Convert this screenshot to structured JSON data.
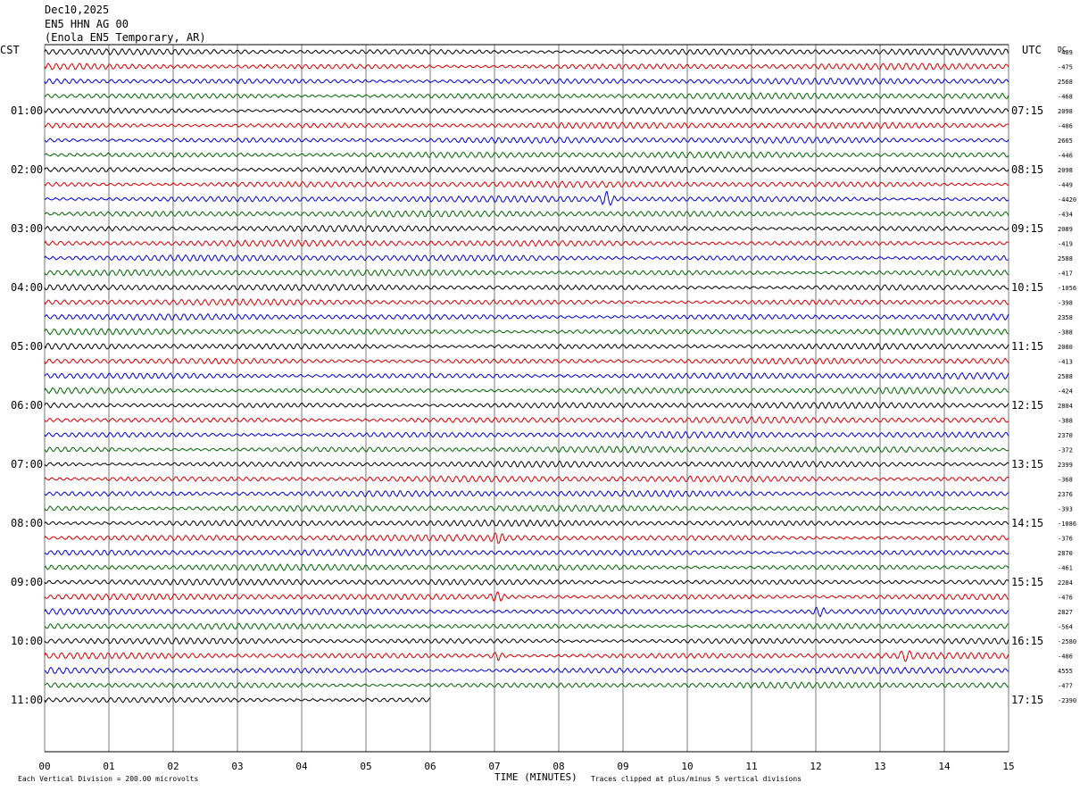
{
  "header": {
    "date": "Dec10,2025",
    "station": "EN5 HHN AG 00",
    "location": "(Enola EN5 Temporary, AR)"
  },
  "left_label": "CST",
  "right_label": "UTC",
  "dc_label": "DC",
  "footer": {
    "division_note": "Each Vertical Division =  200.00 microvolts",
    "xlabel": "TIME (MINUTES)",
    "clip_note": "Traces clipped at plus/minus 5 vertical divisions"
  },
  "colors": {
    "trace_cycle": [
      "#000000",
      "#d00000",
      "#0000c8",
      "#006400"
    ],
    "grid": "#000000",
    "text": "#000000"
  },
  "chart_data": {
    "type": "line",
    "title": "",
    "xlabel": "TIME (MINUTES)",
    "ylabel": "",
    "x_range": [
      0,
      15
    ],
    "x_ticks": [
      "00",
      "01",
      "02",
      "03",
      "04",
      "05",
      "06",
      "07",
      "08",
      "09",
      "10",
      "11",
      "12",
      "13",
      "14",
      "15"
    ],
    "rows_per_hour": 4,
    "minutes_per_row": 15,
    "cst_hour_labels": [
      "01:00",
      "02:00",
      "03:00",
      "04:00",
      "05:00",
      "06:00",
      "07:00",
      "08:00",
      "09:00",
      "10:00",
      "11:00"
    ],
    "utc_hour_labels": [
      "07:15",
      "08:15",
      "09:15",
      "10:15",
      "11:15",
      "12:15",
      "13:15",
      "14:15",
      "15:15",
      "16:15",
      "17:15"
    ],
    "dc_offsets": [
      "-489",
      "-475",
      "2568",
      "-468",
      "2098",
      "-486",
      "2665",
      "-446",
      "2098",
      "-449",
      "-4420",
      "-434",
      "2089",
      "-419",
      "2588",
      "-417",
      "-1056",
      "-398",
      "2358",
      "-388",
      "2080",
      "-413",
      "2588",
      "-424",
      "2804",
      "-388",
      "2370",
      "-372",
      "2399",
      "-368",
      "2376",
      "-393",
      "-1086",
      "-376",
      "2870",
      "-461",
      "2284",
      "-476",
      "2827",
      "-564",
      "-2580",
      "-486",
      "4555",
      "-477",
      "-2390"
    ],
    "trace_count": 45,
    "last_trace_end_minute": 6.0,
    "annotations": [
      {
        "row": 10,
        "minute": 8.75,
        "note": "spike"
      },
      {
        "row": 41,
        "minute": 13.4,
        "note": "burst"
      },
      {
        "row": 41,
        "minute": 7.05,
        "note": "burst"
      },
      {
        "row": 33,
        "minute": 7.05,
        "note": "burst"
      },
      {
        "row": 37,
        "minute": 7.05,
        "note": "burst"
      },
      {
        "row": 38,
        "minute": 12.05,
        "note": "burst"
      }
    ]
  }
}
